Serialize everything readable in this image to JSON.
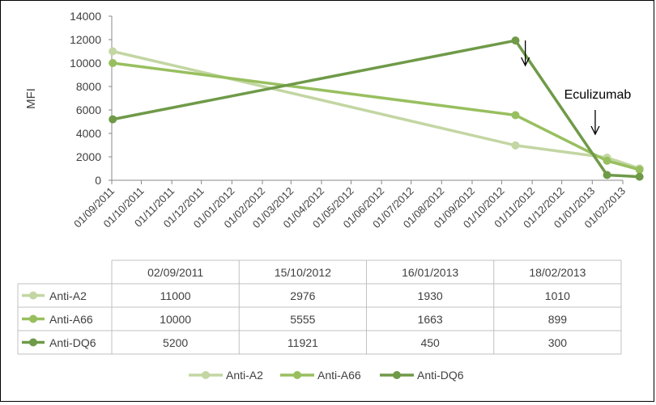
{
  "chart_data": {
    "type": "line",
    "ylabel": "MFI",
    "ylim": [
      0,
      14000
    ],
    "y_ticks": [
      "0",
      "2000",
      "4000",
      "6000",
      "8000",
      "10000",
      "12000",
      "14000"
    ],
    "x_axis_type": "date",
    "x_range": [
      "01/09/2011",
      "01/02/2013"
    ],
    "x_ticks": [
      "01/09/2011",
      "01/10/2011",
      "01/11/2011",
      "01/12/2011",
      "01/01/2012",
      "01/02/2012",
      "01/03/2012",
      "01/04/2012",
      "01/05/2012",
      "01/06/2012",
      "01/07/2012",
      "01/08/2012",
      "01/09/2012",
      "01/10/2012",
      "01/11/2012",
      "01/12/2012",
      "01/01/2013",
      "01/02/2013"
    ],
    "x": [
      "02/09/2011",
      "15/10/2012",
      "16/01/2013",
      "18/02/2013"
    ],
    "series": [
      {
        "name": "Anti-A2",
        "values": [
          11000,
          2976,
          1930,
          1010
        ],
        "display": [
          "11000",
          "2976",
          "1930",
          "1010"
        ],
        "color": "#c3d6a3"
      },
      {
        "name": "Anti-A66",
        "values": [
          10000,
          5555,
          1663,
          899
        ],
        "display": [
          "10000",
          "5555",
          "1663",
          "899"
        ],
        "color": "#98bf5f"
      },
      {
        "name": "Anti-DQ6",
        "values": [
          5200,
          11921,
          450,
          300
        ],
        "display": [
          "5200",
          "11921",
          "450",
          "300"
        ],
        "color": "#6f9a48"
      }
    ],
    "annotations": [
      {
        "text": "",
        "x": "25/10/2012",
        "arrow": "down"
      },
      {
        "text": "Eculizumab",
        "x": "04/01/2013",
        "arrow": "down"
      }
    ],
    "legend_position": "bottom",
    "grid": false,
    "data_table": true
  }
}
